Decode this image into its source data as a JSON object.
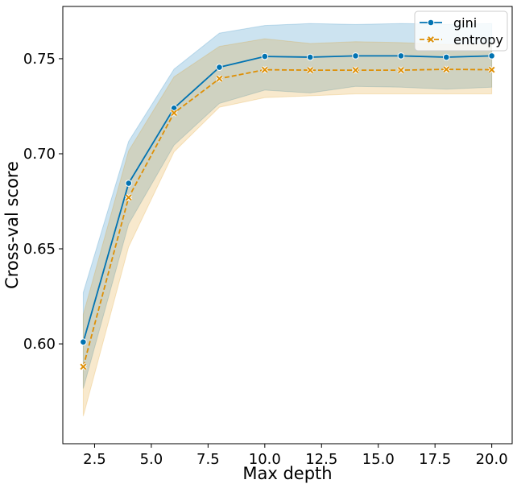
{
  "chart_data": {
    "type": "line",
    "title": "",
    "xlabel": "Max depth",
    "ylabel": "Cross-val score",
    "xlim": [
      1.1,
      20.9
    ],
    "ylim": [
      0.5475,
      0.7775
    ],
    "xticks": [
      2.5,
      5.0,
      7.5,
      10.0,
      12.5,
      15.0,
      17.5,
      20.0
    ],
    "xtick_labels": [
      "2.5",
      "5.0",
      "7.5",
      "10.0",
      "12.5",
      "15.0",
      "17.5",
      "20.0"
    ],
    "yticks": [
      0.6,
      0.65,
      0.7,
      0.75
    ],
    "ytick_labels": [
      "0.60",
      "0.65",
      "0.70",
      "0.75"
    ],
    "grid": false,
    "legend_position": "top-right",
    "x": [
      2,
      4,
      6,
      8,
      10,
      12,
      14,
      16,
      18,
      20
    ],
    "series": [
      {
        "name": "gini",
        "color": "#0173b2",
        "line_style": "solid",
        "marker": "circle",
        "values": [
          0.601,
          0.6845,
          0.724,
          0.7455,
          0.7512,
          0.7508,
          0.7515,
          0.7515,
          0.7508,
          0.7515
        ],
        "band_upper": [
          0.627,
          0.7065,
          0.7445,
          0.7635,
          0.7675,
          0.7685,
          0.768,
          0.7685,
          0.768,
          0.7685
        ],
        "band_lower": [
          0.5765,
          0.663,
          0.7045,
          0.7265,
          0.7335,
          0.732,
          0.7355,
          0.735,
          0.734,
          0.735
        ]
      },
      {
        "name": "entropy",
        "color": "#de8f05",
        "line_style": "dashed",
        "marker": "x",
        "values": [
          0.588,
          0.677,
          0.7215,
          0.7395,
          0.7442,
          0.744,
          0.744,
          0.744,
          0.7444,
          0.7442
        ],
        "band_upper": [
          0.6155,
          0.7015,
          0.7405,
          0.7565,
          0.7605,
          0.758,
          0.759,
          0.7585,
          0.7575,
          0.7575
        ],
        "band_lower": [
          0.562,
          0.651,
          0.701,
          0.7245,
          0.7295,
          0.7305,
          0.7315,
          0.7315,
          0.7315,
          0.7315
        ]
      }
    ]
  }
}
